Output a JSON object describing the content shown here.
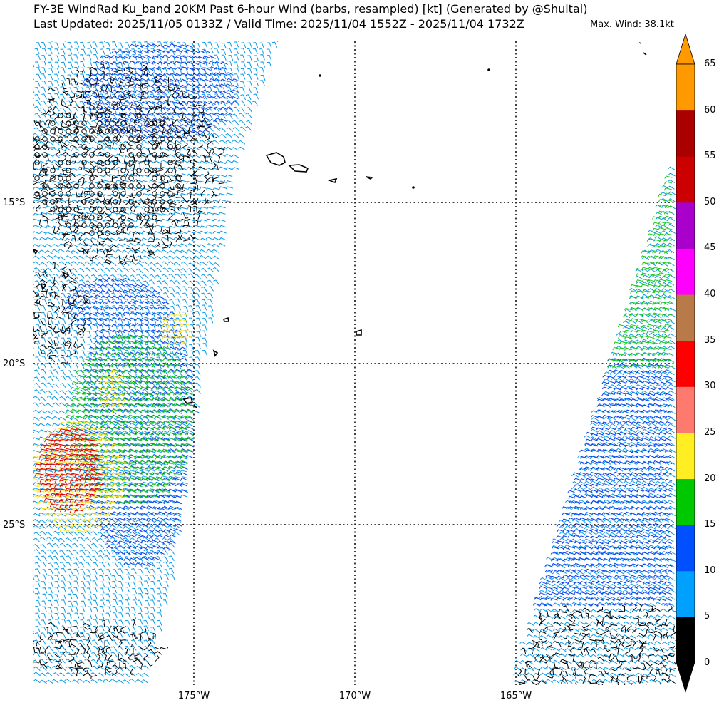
{
  "title": {
    "line1": "FY-3E WindRad Ku_band 20KM Past 6-hour Wind (barbs, resampled) [kt] (Generated by @Shuitai)",
    "line2": "Last Updated: 2025/11/05 0133Z / Valid Time: 2025/11/04 1552Z - 2025/11/04 1732Z",
    "max_wind": "Max. Wind: 38.1kt"
  },
  "map": {
    "lat_labels": [
      "15°S",
      "20°S",
      "25°S"
    ],
    "lon_labels": [
      "175°W",
      "170°W",
      "165°W"
    ],
    "gridlines": "dotted",
    "coastline_color": "#000000"
  },
  "colorbar": {
    "ticks": [
      "0",
      "5",
      "10",
      "15",
      "20",
      "25",
      "30",
      "35",
      "40",
      "45",
      "50",
      "55",
      "60",
      "65"
    ],
    "bins": [
      {
        "from": 0,
        "to": 5,
        "color": "#000000"
      },
      {
        "from": 5,
        "to": 10,
        "color": "#00a0ff"
      },
      {
        "from": 10,
        "to": 15,
        "color": "#0050ff"
      },
      {
        "from": 15,
        "to": 20,
        "color": "#00c800"
      },
      {
        "from": 20,
        "to": 25,
        "color": "#ffee22"
      },
      {
        "from": 25,
        "to": 30,
        "color": "#ff7a6e"
      },
      {
        "from": 30,
        "to": 35,
        "color": "#ff0000"
      },
      {
        "from": 35,
        "to": 40,
        "color": "#b97a4a"
      },
      {
        "from": 40,
        "to": 45,
        "color": "#ff00ff"
      },
      {
        "from": 45,
        "to": 50,
        "color": "#aa00cc"
      },
      {
        "from": 50,
        "to": 55,
        "color": "#cc0000"
      },
      {
        "from": 55,
        "to": 60,
        "color": "#aa0000"
      },
      {
        "from": 60,
        "to": 65,
        "color": "#ff9900"
      }
    ],
    "extend": "both",
    "unit": "kt"
  }
}
